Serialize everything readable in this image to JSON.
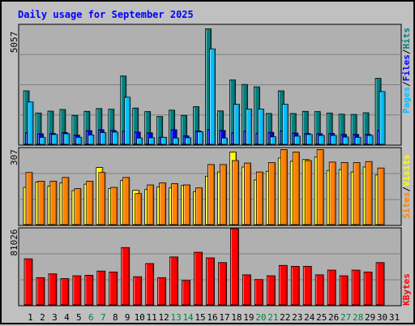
{
  "chart_data": {
    "type": "bar",
    "title": "Daily usage for September 2025",
    "days": [
      "1",
      "2",
      "3",
      "4",
      "5",
      "6",
      "7",
      "8",
      "9",
      "10",
      "11",
      "12",
      "13",
      "14",
      "15",
      "16",
      "17",
      "18",
      "19",
      "20",
      "21",
      "22",
      "23",
      "24",
      "25",
      "26",
      "27",
      "28",
      "29",
      "30",
      "31"
    ],
    "weekend_days": [
      6,
      7,
      13,
      14,
      20,
      21,
      27,
      28
    ],
    "colors": {
      "hits": "#008080",
      "files": "#0000ff",
      "pages": "#00c0ff",
      "visits": "#ffff00",
      "sites": "#ff8000",
      "kbytes": "#ff0000",
      "weekend_label": "#008040",
      "weekday_label": "#000000",
      "title": "#0000ff",
      "background": "#c0c0c0",
      "plot": "#b0b0b0",
      "grid": "#808080"
    },
    "legend_top": {
      "hits": "Hits",
      "files": "Files",
      "pages": "Pages",
      "sep": "/"
    },
    "legend_mid": {
      "visits": "Visits",
      "sites": "Sites",
      "sep": "/"
    },
    "legend_bottom": {
      "kbytes": "KBytes"
    },
    "panels": [
      {
        "name": "hits-files-pages",
        "ymax_label": "5057",
        "ymax": 5057,
        "series": [
          {
            "name": "Hits",
            "values": [
              2270,
              1330,
              1410,
              1480,
              1230,
              1400,
              1520,
              1490,
              2900,
              1540,
              1390,
              1180,
              1450,
              1230,
              1600,
              4900,
              1420,
              2730,
              2540,
              2440,
              1310,
              2270,
              1310,
              1400,
              1390,
              1330,
              1280,
              1270,
              1340,
              2800,
              0
            ]
          },
          {
            "name": "Files",
            "values": [
              490,
              450,
              460,
              500,
              390,
              580,
              620,
              590,
              560,
              520,
              490,
              300,
              620,
              360,
              570,
              630,
              590,
              490,
              560,
              470,
              510,
              580,
              480,
              460,
              450,
              460,
              420,
              420,
              420,
              590,
              0
            ]
          },
          {
            "name": "Pages",
            "values": [
              1800,
              300,
              420,
              450,
              300,
              400,
              500,
              520,
              2000,
              270,
              280,
              300,
              270,
              280,
              530,
              4050,
              270,
              1700,
              1500,
              1500,
              320,
              1700,
              350,
              420,
              380,
              380,
              310,
              300,
              380,
              2240,
              0
            ]
          }
        ]
      },
      {
        "name": "visits-sites",
        "ymax_label": "307",
        "ymax": 307,
        "series": [
          {
            "name": "Visits",
            "values": [
              150,
              172,
              155,
              168,
              137,
              163,
              230,
              145,
              178,
              138,
              142,
              152,
              148,
              158,
              133,
              195,
              212,
              292,
              232,
              180,
              215,
              268,
              255,
              262,
              272,
              218,
              222,
              212,
              232,
              200,
              0
            ]
          },
          {
            "name": "Sites",
            "values": [
              210,
              175,
              175,
              190,
              145,
              175,
              210,
              150,
              190,
              125,
              160,
              168,
              165,
              160,
              148,
              242,
              242,
              258,
              248,
              212,
              250,
              302,
              292,
              258,
              302,
              252,
              250,
              250,
              254,
              228,
              0
            ]
          }
        ]
      },
      {
        "name": "kbytes",
        "ymax_label": "81026",
        "ymax": 81026,
        "series": [
          {
            "name": "KBytes",
            "values": [
              49000,
              29000,
              33000,
              28000,
              31000,
              31500,
              36000,
              35000,
              61000,
              30000,
              44000,
              29000,
              51000,
              26000,
              56000,
              50000,
              45000,
              81026,
              32000,
              27000,
              31000,
              42000,
              41000,
              41000,
              32000,
              37000,
              31000,
              37000,
              35000,
              45000,
              0
            ]
          }
        ]
      }
    ]
  }
}
